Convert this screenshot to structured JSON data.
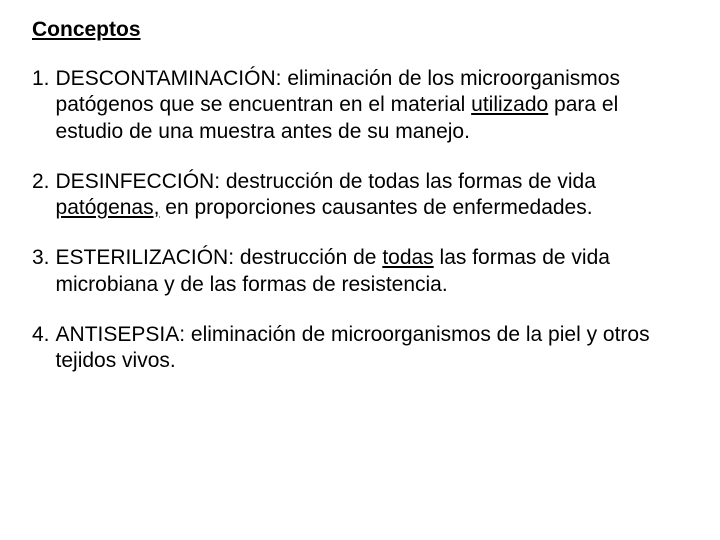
{
  "page": {
    "background_color": "#ffffff",
    "text_color": "#000000",
    "font_family": "Arial, Helvetica, sans-serif",
    "title_fontsize": 21,
    "body_fontsize": 21,
    "line_height": 1.25
  },
  "title": "Conceptos",
  "items": [
    {
      "num": "1.",
      "term": "DESCONTAMINACIÓN",
      "sep": ": ",
      "def_pre": "eliminación de los microorganismos patógenos que se encuentran en el material ",
      "underlined": "utilizado",
      "def_post": " para el estudio de una muestra antes de su manejo."
    },
    {
      "num": "2.",
      "term": "DESINFECCIÓN",
      "sep": ": ",
      "def_pre": "destrucción de todas las formas de vida ",
      "underlined": "patógenas,",
      "def_post": " en proporciones causantes de enfermedades."
    },
    {
      "num": "3.",
      "term": "ESTERILIZACIÓN",
      "sep": ": ",
      "def_pre": "destrucción de ",
      "underlined": "todas",
      "def_post": " las formas de vida microbiana y de las formas de resistencia."
    },
    {
      "num": "4.",
      "term": "ANTISEPSIA",
      "sep": ": ",
      "def_pre": "eliminación de microorganismos de la piel y otros tejidos vivos.",
      "underlined": "",
      "def_post": ""
    }
  ]
}
